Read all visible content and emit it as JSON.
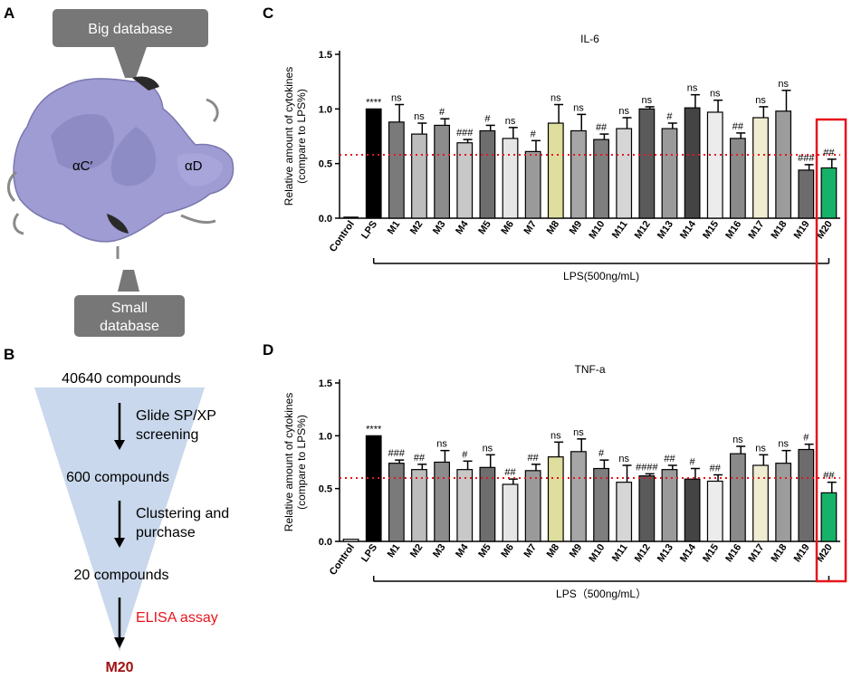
{
  "panels": {
    "a": "A",
    "b": "B",
    "c": "C",
    "d": "D"
  },
  "panel_a": {
    "big_db": "Big database",
    "small_db_line1": "Small",
    "small_db_line2": "database",
    "helix1": "αC′",
    "helix2": "αD"
  },
  "panel_b": {
    "start": "40640 compounds",
    "step1_line1": "Glide SP/XP",
    "step1_line2": "screening",
    "mid1": "600 compounds",
    "step2_line1": "Clustering and",
    "step2_line2": "purchase",
    "mid2": "20 compounds",
    "step3": "ELISA assay",
    "result": "M20",
    "colors": {
      "funnel": "#c9d8ec",
      "red": "#e8141c",
      "result": "#a01010"
    }
  },
  "chart_data": [
    {
      "type": "bar",
      "title": "IL-6",
      "ylabel_line1": "Relative amount of cytokines",
      "ylabel_line2": "(compare to LPS%)",
      "ylim": [
        0,
        1.5
      ],
      "yticks": [
        "0.0",
        "0.5",
        "1.0",
        "1.5"
      ],
      "threshold": 0.58,
      "categories": [
        "Control",
        "LPS",
        "M1",
        "M2",
        "M3",
        "M4",
        "M5",
        "M6",
        "M7",
        "M8",
        "M9",
        "M10",
        "M11",
        "M12",
        "M13",
        "M14",
        "M15",
        "M16",
        "M17",
        "M18",
        "M19",
        "M20"
      ],
      "values": [
        0.0,
        1.0,
        0.88,
        0.77,
        0.85,
        0.69,
        0.8,
        0.73,
        0.61,
        0.87,
        0.8,
        0.72,
        0.82,
        1.0,
        0.82,
        1.01,
        0.97,
        0.73,
        0.92,
        0.98,
        0.44,
        0.46
      ],
      "errors": [
        0.0,
        0.0,
        0.16,
        0.1,
        0.06,
        0.03,
        0.05,
        0.1,
        0.1,
        0.17,
        0.15,
        0.05,
        0.1,
        0.02,
        0.05,
        0.12,
        0.11,
        0.05,
        0.1,
        0.19,
        0.05,
        0.08
      ],
      "annotations": [
        "",
        "****",
        "ns",
        "ns",
        "#",
        "###",
        "#",
        "ns",
        "#",
        "ns",
        "ns",
        "##",
        "ns",
        "ns",
        "#",
        "ns",
        "ns",
        "##",
        "ns",
        "ns",
        "###",
        "##"
      ],
      "bar_colors": [
        "#ffffff",
        "#000000",
        "#7a7a7a",
        "#bdbdbd",
        "#8c8c8c",
        "#c8c8c8",
        "#6e6e6e",
        "#e6e6e6",
        "#9a9a9a",
        "#dede9e",
        "#a6a6a6",
        "#7e7e7e",
        "#d6d6d6",
        "#5a5a5a",
        "#9a9a9a",
        "#444444",
        "#ececec",
        "#8a8a8a",
        "#f0ecd2",
        "#9c9c9c",
        "#6c6c6c",
        "#17b26a"
      ],
      "group_label": "LPS(500ng/mL)"
    },
    {
      "type": "bar",
      "title": "TNF-a",
      "ylabel_line1": "Relative amount of cytokines",
      "ylabel_line2": "(compare to LPS%)",
      "ylim": [
        0,
        1.5
      ],
      "yticks": [
        "0.0",
        "0.5",
        "1.0",
        "1.5"
      ],
      "threshold": 0.6,
      "categories": [
        "Control",
        "LPS",
        "M1",
        "M2",
        "M3",
        "M4",
        "M5",
        "M6",
        "M7",
        "M8",
        "M9",
        "M10",
        "M11",
        "M12",
        "M13",
        "M14",
        "M15",
        "M16",
        "M17",
        "M18",
        "M19",
        "M20"
      ],
      "values": [
        0.02,
        1.0,
        0.74,
        0.68,
        0.75,
        0.68,
        0.7,
        0.54,
        0.67,
        0.8,
        0.85,
        0.69,
        0.56,
        0.62,
        0.68,
        0.59,
        0.57,
        0.83,
        0.72,
        0.74,
        0.87,
        0.46
      ],
      "errors": [
        0.0,
        0.0,
        0.03,
        0.05,
        0.11,
        0.08,
        0.12,
        0.05,
        0.06,
        0.14,
        0.12,
        0.08,
        0.16,
        0.02,
        0.04,
        0.1,
        0.06,
        0.07,
        0.1,
        0.12,
        0.05,
        0.1
      ],
      "annotations": [
        "",
        "****",
        "###",
        "##",
        "ns",
        "#",
        "ns",
        "##",
        "##",
        "ns",
        "ns",
        "#",
        "ns",
        "####",
        "##",
        "#",
        "##",
        "ns",
        "ns",
        "ns",
        "#",
        "##"
      ],
      "bar_colors": [
        "#ffffff",
        "#000000",
        "#7a7a7a",
        "#bdbdbd",
        "#8c8c8c",
        "#c8c8c8",
        "#6e6e6e",
        "#e6e6e6",
        "#9a9a9a",
        "#dede9e",
        "#a6a6a6",
        "#7e7e7e",
        "#d6d6d6",
        "#5a5a5a",
        "#9a9a9a",
        "#444444",
        "#ececec",
        "#8a8a8a",
        "#f0ecd2",
        "#9c9c9c",
        "#6c6c6c",
        "#17b26a"
      ],
      "group_label": "LPS（500ng/mL）"
    }
  ],
  "colors": {
    "threshold": "#e8141c",
    "highlight_box": "#e8141c"
  }
}
